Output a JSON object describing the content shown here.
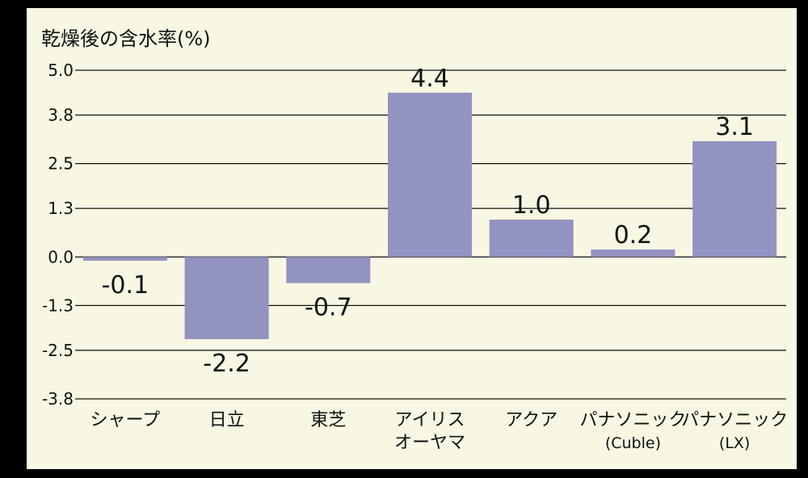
{
  "chart_data": {
    "type": "bar",
    "title": "",
    "ylabel": "乾燥後の含水率(%)",
    "xlabel": "",
    "ylim": [
      -3.8,
      5.0
    ],
    "yticks": [
      "5.0",
      "3.8",
      "2.5",
      "1.3",
      "0.0",
      "-1.3",
      "-2.5",
      "-3.8"
    ],
    "grid": true,
    "legend": "none",
    "categories": [
      [
        "シャープ"
      ],
      [
        "日立"
      ],
      [
        "東芝"
      ],
      [
        "アイリス",
        "オーヤマ"
      ],
      [
        "アクア"
      ],
      [
        "パナソニック",
        "(Cuble)"
      ],
      [
        "パナソニック",
        "(LX)"
      ]
    ],
    "values": [
      -0.1,
      -2.2,
      -0.7,
      4.4,
      1.0,
      0.2,
      3.1
    ],
    "value_labels": [
      "-0.1",
      "-2.2",
      "-0.7",
      "4.4",
      "1.0",
      "0.2",
      "3.1"
    ],
    "bar_color": "#9293c0",
    "background_color": "#f8f7e4",
    "frame_color": "#000000"
  }
}
